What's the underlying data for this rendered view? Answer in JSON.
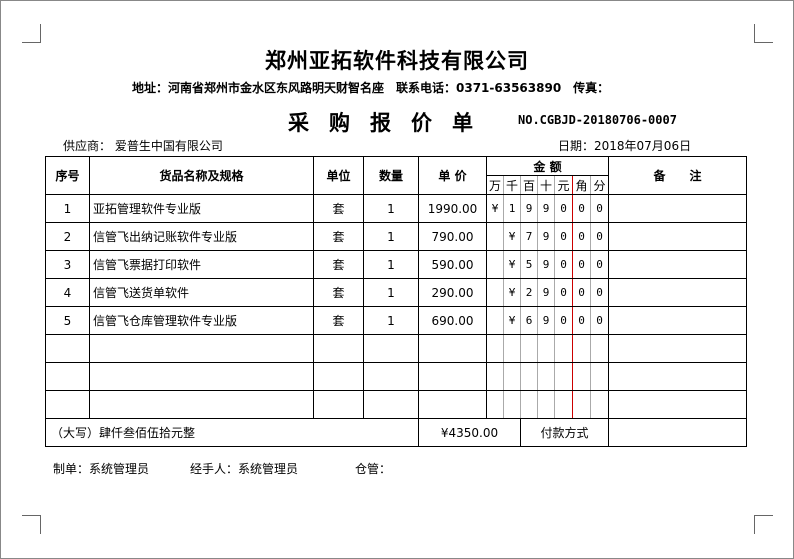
{
  "company": "郑州亚拓软件科技有限公司",
  "address_line": "地址：河南省郑州市金水区东风路明天财智名座　联系电话：0371-63563890　传真：",
  "doc_title": "采购报价单",
  "doc_no": "NO.CGBJD-20180706-0007",
  "supplier": "供应商：  爱普生中国有限公司",
  "date": "日期：2018年07月06日",
  "headers": {
    "seq": "序号",
    "name": "货品名称及规格",
    "unit": "单位",
    "qty": "数量",
    "price": "单 价",
    "amount": "金 额",
    "remark": "备　　注",
    "digits": [
      "万",
      "千",
      "百",
      "十",
      "元",
      "角",
      "分"
    ]
  },
  "rows": [
    {
      "seq": "1",
      "name": "亚拓管理软件专业版",
      "unit": "套",
      "qty": "1",
      "price": "1990.00",
      "digits": [
        "¥",
        "1",
        "9",
        "9",
        "0",
        "0",
        "0"
      ]
    },
    {
      "seq": "2",
      "name": "信管飞出纳记账软件专业版",
      "unit": "套",
      "qty": "1",
      "price": "790.00",
      "digits": [
        "",
        "¥",
        "7",
        "9",
        "0",
        "0",
        "0"
      ]
    },
    {
      "seq": "3",
      "name": "信管飞票据打印软件",
      "unit": "套",
      "qty": "1",
      "price": "590.00",
      "digits": [
        "",
        "¥",
        "5",
        "9",
        "0",
        "0",
        "0"
      ]
    },
    {
      "seq": "4",
      "name": "信管飞送货单软件",
      "unit": "套",
      "qty": "1",
      "price": "290.00",
      "digits": [
        "",
        "¥",
        "2",
        "9",
        "0",
        "0",
        "0"
      ]
    },
    {
      "seq": "5",
      "name": "信管飞仓库管理软件专业版",
      "unit": "套",
      "qty": "1",
      "price": "690.00",
      "digits": [
        "",
        "¥",
        "6",
        "9",
        "0",
        "0",
        "0"
      ]
    }
  ],
  "total": {
    "words": "（大写）肆仟叁佰伍拾元整",
    "amount": "¥4350.00",
    "payment_label": "付款方式"
  },
  "footer": {
    "maker": "制单：系统管理员",
    "handler": "经手人：系统管理员",
    "warehouse": "仓管："
  }
}
